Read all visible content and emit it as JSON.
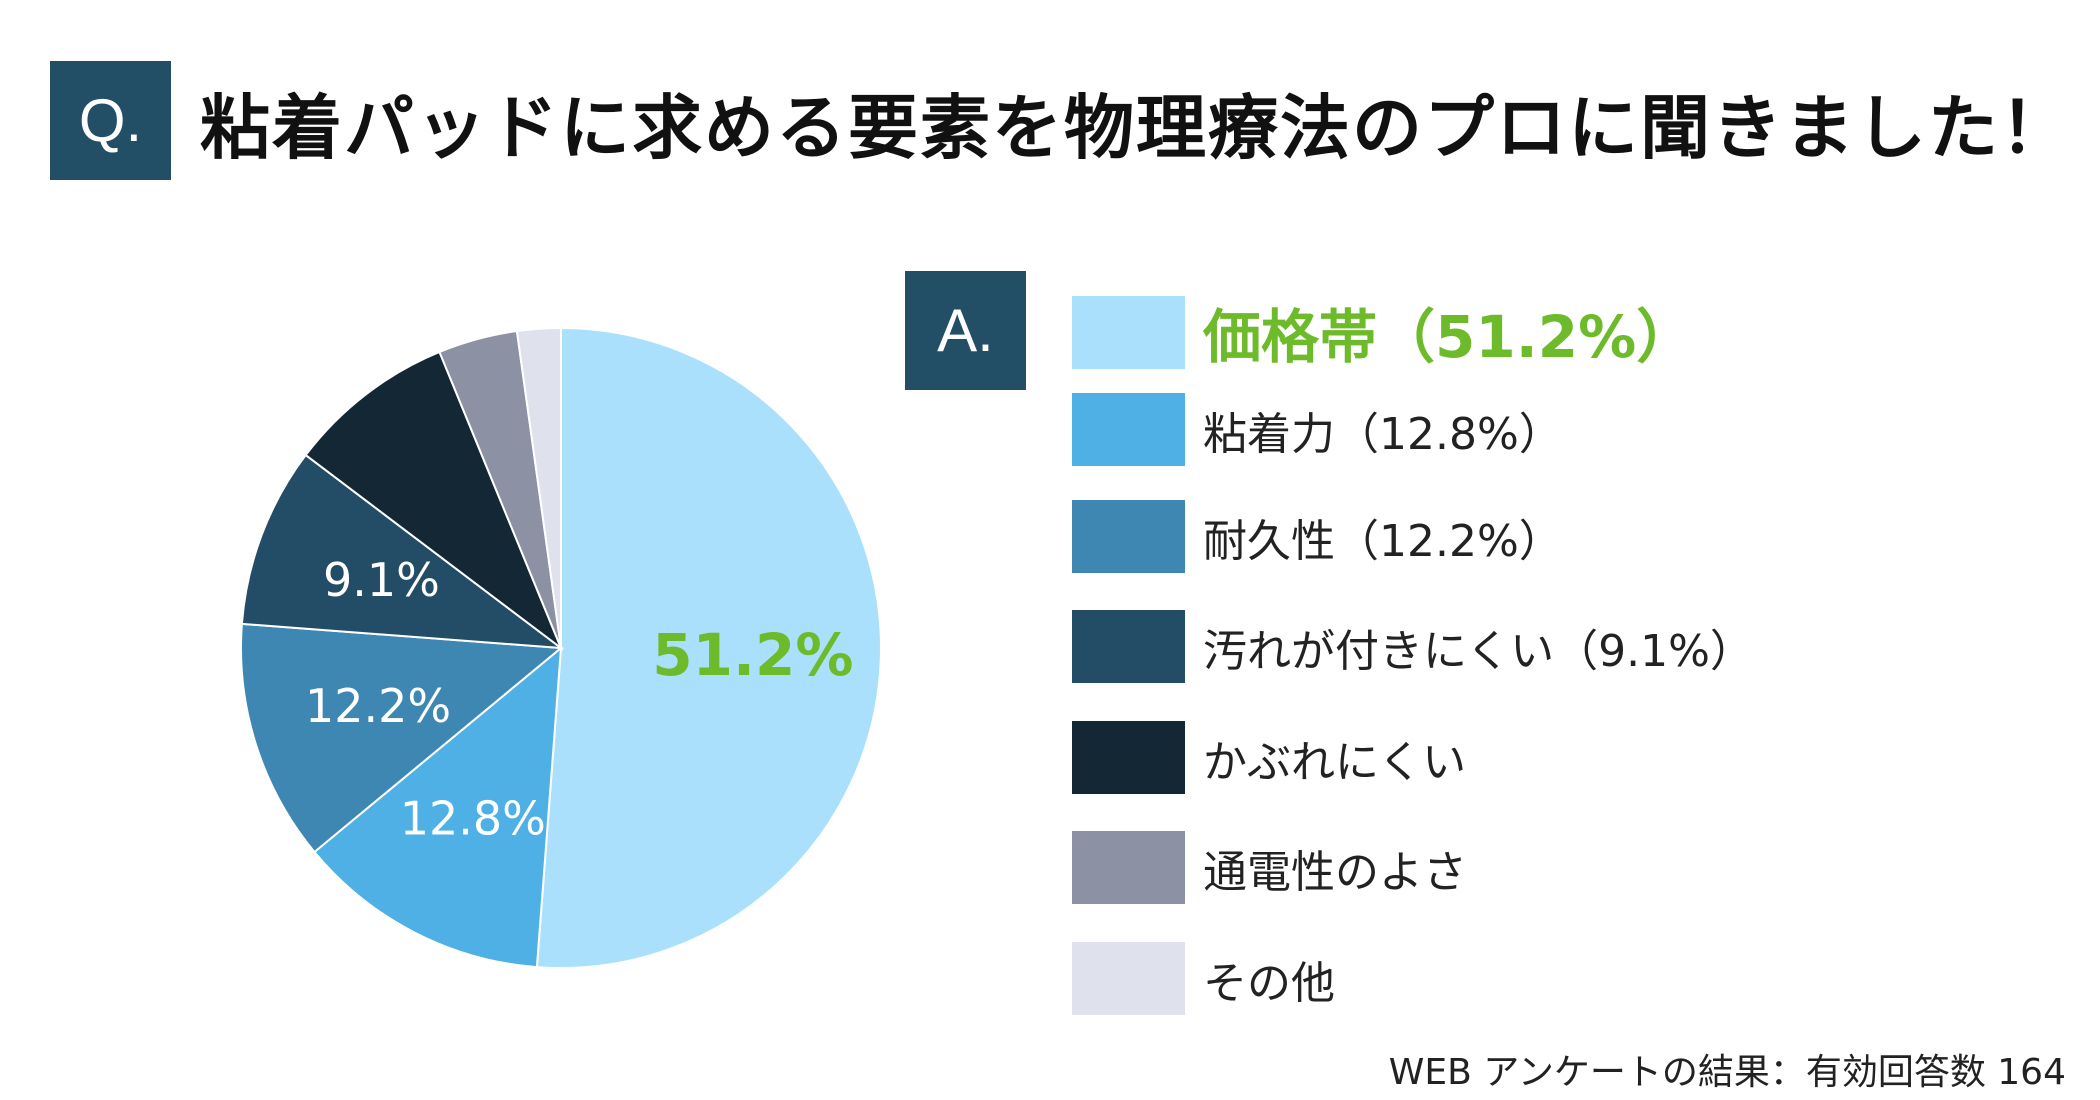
{
  "header": {
    "badge": "Q.",
    "title": "粘着パッドに求める要素を物理療法のプロに聞きました！"
  },
  "answer_badge": "A.",
  "chart_data": {
    "type": "pie",
    "start": "12 o'clock",
    "direction": "clockwise",
    "slices": [
      {
        "label": "価格帯",
        "value": 51.2,
        "color": "#abe0fc",
        "slice_label": "51.2%",
        "slice_label_color": "#6dbb2a",
        "legend": "価格帯（51.2%）"
      },
      {
        "label": "粘着力",
        "value": 12.8,
        "color": "#4fb0e6",
        "slice_label": "12.8%",
        "slice_label_color": "#ffffff",
        "legend": "粘着力（12.8%）"
      },
      {
        "label": "耐久性",
        "value": 12.2,
        "color": "#3e87b3",
        "slice_label": "12.2%",
        "slice_label_color": "#ffffff",
        "legend": "耐久性（12.2%）"
      },
      {
        "label": "汚れが付きにくい",
        "value": 9.1,
        "color": "#234d66",
        "slice_label": "9.1%",
        "slice_label_color": "#ffffff",
        "legend": "汚れが付きにくい（9.1%）"
      },
      {
        "label": "かぶれにくい",
        "value": 8.5,
        "color": "#142734",
        "slice_label": "",
        "legend": "かぶれにくい"
      },
      {
        "label": "通電性のよさ",
        "value": 4.0,
        "color": "#8c91a3",
        "slice_label": "",
        "legend": "通電性のよさ"
      },
      {
        "label": "その他",
        "value": 2.2,
        "color": "#dfe2ec",
        "slice_label": "",
        "legend": "その他"
      }
    ]
  },
  "footer": "WEB アンケートの結果：有効回答数 164"
}
